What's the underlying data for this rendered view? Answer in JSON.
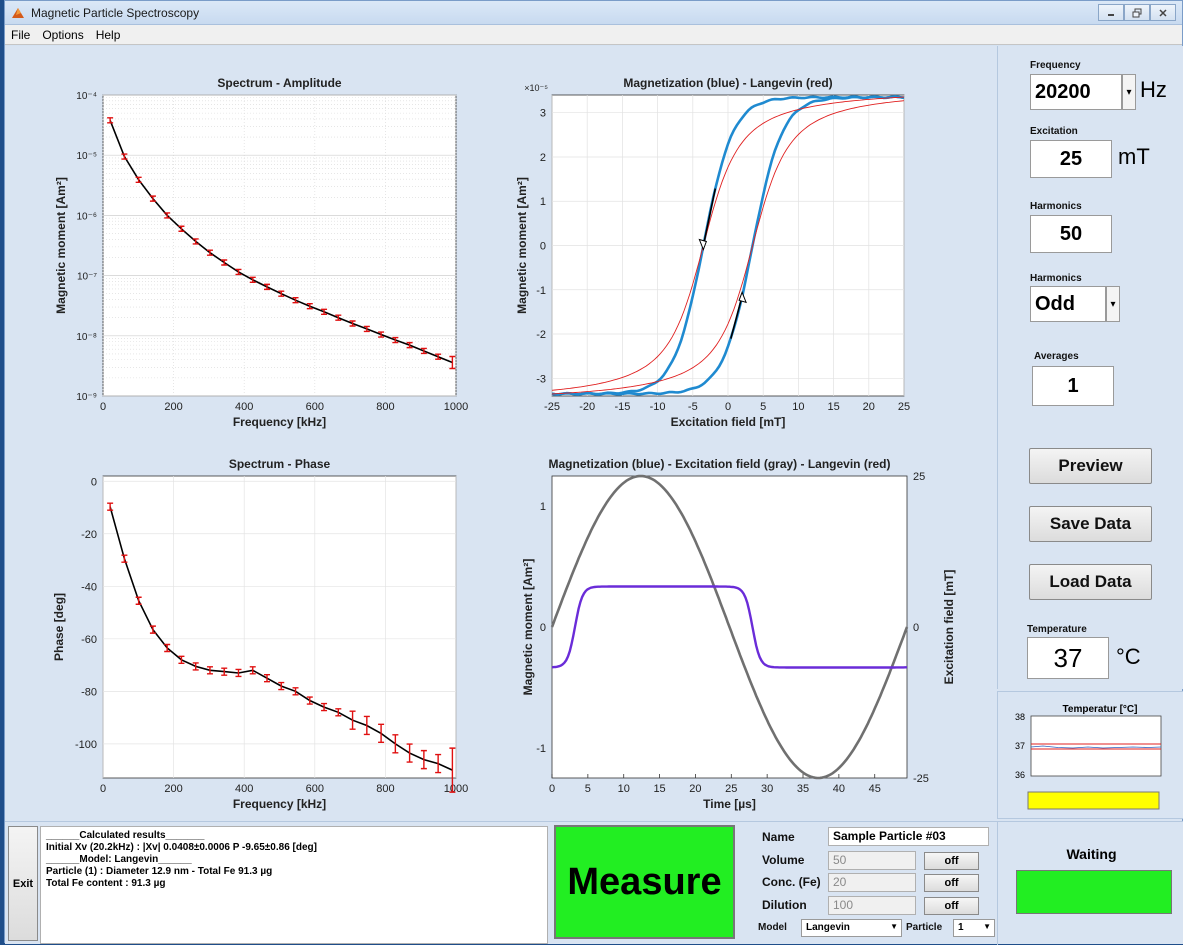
{
  "window": {
    "title": "Magnetic Particle Spectroscopy",
    "menu": [
      "File",
      "Options",
      "Help"
    ]
  },
  "controls": {
    "frequency_label": "Frequency",
    "frequency_value": "20200",
    "frequency_unit": "Hz",
    "excitation_label": "Excitation",
    "excitation_value": "25",
    "excitation_unit": "mT",
    "harmonics_label": "Harmonics",
    "harmonics_value": "50",
    "harmonics_mode_label": "Harmonics",
    "harmonics_mode_value": "Odd",
    "averages_label": "Averages",
    "averages_value": "1",
    "preview_label": "Preview",
    "save_label": "Save Data",
    "load_label": "Load Data",
    "temperature_label": "Temperature",
    "temperature_value": "37",
    "temperature_unit": "°C"
  },
  "temp_chart": {
    "title": "Temperatur [°C]",
    "y_ticks": [
      "38",
      "37",
      "36"
    ],
    "level_color": "#ffff00"
  },
  "results": {
    "lines": [
      "______Calculated results_______",
      "Initial Xv (20.2kHz) : |Xv| 0.0408±0.0006  P -9.65±0.86 [deg]",
      "______Model: Langevin______",
      "Particle (1) : Diameter 12.9 nm - Total Fe 91.3 µg",
      "Total Fe content : 91.3 µg"
    ]
  },
  "bottom": {
    "exit_label": "Exit",
    "measure_label": "Measure",
    "name_label": "Name",
    "name_value": "Sample Particle #03",
    "volume_label": "Volume",
    "volume_value": "50",
    "conc_label": "Conc. (Fe)",
    "conc_value": "20",
    "dilution_label": "Dilution",
    "dilution_value": "100",
    "off_label": "off",
    "model_label": "Model",
    "model_value": "Langevin",
    "particle_label": "Particle",
    "particle_value": "1",
    "status_label": "Waiting",
    "status_color": "#22ee22"
  },
  "chart_data": [
    {
      "type": "line",
      "title": "Spectrum - Amplitude",
      "xlabel": "Frequency [kHz]",
      "ylabel": "Magnetic moment [Am²]",
      "yscale": "log",
      "xlim": [
        0,
        1000
      ],
      "ylim": [
        1e-09,
        0.0001
      ],
      "x_ticks": [
        "0",
        "200",
        "400",
        "600",
        "800",
        "1000"
      ],
      "y_ticks": [
        "10⁻⁹",
        "10⁻⁸",
        "10⁻⁷",
        "10⁻⁶",
        "10⁻⁵",
        "10⁻⁴"
      ],
      "grid": true,
      "x": [
        20.2,
        60.6,
        101,
        141.4,
        181.8,
        222.2,
        262.6,
        303,
        343.4,
        383.8,
        424.2,
        464.6,
        505,
        545.4,
        585.8,
        626.2,
        666.6,
        707,
        747.4,
        787.8,
        828.2,
        868.6,
        909,
        949.4,
        989.8
      ],
      "values": [
        3.8e-05,
        9.5e-06,
        3.9e-06,
        1.9e-06,
        1e-06,
        6e-07,
        3.7e-07,
        2.4e-07,
        1.65e-07,
        1.15e-07,
        8.5e-08,
        6.5e-08,
        5e-08,
        3.9e-08,
        3.1e-08,
        2.5e-08,
        2e-08,
        1.6e-08,
        1.3e-08,
        1.05e-08,
        8.5e-09,
        7e-09,
        5.6e-09,
        4.5e-09,
        3.6e-09
      ]
    },
    {
      "type": "line",
      "title": "Magnetization (blue) - Langevin (red)",
      "xlabel": "Excitation field [mT]",
      "ylabel": "Magnetic moment [Am²]",
      "y_exponent": "×10⁻⁵",
      "xlim": [
        -25,
        25
      ],
      "ylim": [
        -3.4,
        3.4
      ],
      "x_ticks": [
        "-25",
        "-20",
        "-15",
        "-10",
        "-5",
        "0",
        "5",
        "10",
        "15",
        "20",
        "25"
      ],
      "y_ticks": [
        "3",
        "2",
        "1",
        "0",
        "-1",
        "-2",
        "-3"
      ],
      "grid": true,
      "series": [
        {
          "name": "Magnetization",
          "color": "#1f8ad0"
        },
        {
          "name": "Langevin",
          "color": "#e02020"
        }
      ],
      "loop": {
        "saturation": 3.35,
        "coercive_field": 3.5,
        "width_parameter": 4.2
      }
    },
    {
      "type": "line",
      "title": "Spectrum - Phase",
      "xlabel": "Frequency [kHz]",
      "ylabel": "Phase [deg]",
      "xlim": [
        0,
        1000
      ],
      "ylim": [
        -113,
        2
      ],
      "x_ticks": [
        "0",
        "200",
        "400",
        "600",
        "800",
        "1000"
      ],
      "y_ticks": [
        "0",
        "-20",
        "-40",
        "-60",
        "-80",
        "-100"
      ],
      "grid": true,
      "x": [
        20.2,
        60.6,
        101,
        141.4,
        181.8,
        222.2,
        262.6,
        303,
        343.4,
        383.8,
        424.2,
        464.6,
        505,
        545.4,
        585.8,
        626.2,
        666.6,
        707,
        747.4,
        787.8,
        828.2,
        868.6,
        909,
        949.4,
        989.8
      ],
      "values": [
        -9.7,
        -29.5,
        -45.5,
        -56.5,
        -63.5,
        -68.0,
        -70.5,
        -72.0,
        -72.5,
        -73.0,
        -72.0,
        -75.0,
        -78.0,
        -80.0,
        -83.5,
        -86.0,
        -88.0,
        -91.0,
        -93.0,
        -96.0,
        -100.0,
        -103.5,
        -106.0,
        -107.5,
        -110.0
      ]
    },
    {
      "type": "line",
      "title": "Magnetization (blue) - Excitation field (gray) - Langevin (red)",
      "xlabel": "Time [µs]",
      "ylabel": "Magnetic moment [Am²]",
      "ylabel_right": "Excitation field [mT]",
      "xlim": [
        0,
        49.5
      ],
      "ylim": [
        -1.25,
        1.25
      ],
      "ylim_right": [
        -25,
        25
      ],
      "x_ticks": [
        "0",
        "5",
        "10",
        "15",
        "20",
        "25",
        "30",
        "35",
        "40",
        "45"
      ],
      "y_ticks": [
        "1",
        "0",
        "-1"
      ],
      "y_ticks_right": [
        "25",
        "0",
        "-25"
      ],
      "series": [
        {
          "name": "Magnetization",
          "color": "#6a2cd8"
        },
        {
          "name": "Excitation field",
          "color": "#707070"
        }
      ],
      "period_us": 49.5,
      "excitation_amplitude": 25,
      "magnetization_level": 0.335
    }
  ]
}
